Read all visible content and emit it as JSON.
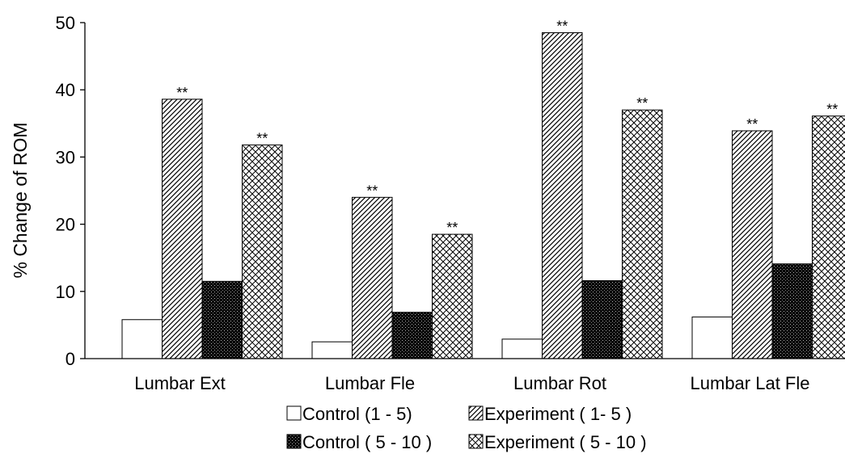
{
  "chart_data": {
    "type": "bar",
    "ylabel": "% Change of ROM",
    "xlabel": "",
    "ylim": [
      0,
      50
    ],
    "yticks": [
      "0",
      "10",
      "20",
      "30",
      "40",
      "50"
    ],
    "categories": [
      "Lumbar Ext",
      "Lumbar Fle",
      "Lumbar Rot",
      "Lumbar Lat Fle"
    ],
    "series": [
      {
        "name": "Control (1 - 5)",
        "pattern": "white",
        "values": [
          5.8,
          2.5,
          2.9,
          6.2
        ],
        "sig": [
          "",
          "",
          "",
          ""
        ]
      },
      {
        "name": "Experiment ( 1- 5 )",
        "pattern": "diagonal",
        "values": [
          38.6,
          24.0,
          48.5,
          33.9
        ],
        "sig": [
          "**",
          "**",
          "**",
          "**"
        ]
      },
      {
        "name": "Control ( 5 - 10 )",
        "pattern": "dark-dots",
        "values": [
          11.5,
          6.9,
          11.6,
          14.1
        ],
        "sig": [
          "",
          "",
          "",
          ""
        ]
      },
      {
        "name": "Experiment ( 5 - 10 )",
        "pattern": "crosshatch",
        "values": [
          31.8,
          18.5,
          37.0,
          36.1
        ],
        "sig": [
          "**",
          "**",
          "**",
          "**"
        ]
      }
    ],
    "grid": false,
    "legend": "bottom",
    "colors": {
      "axis": "#000000",
      "dark_fill": "#000000",
      "light_fill": "#ffffff"
    }
  }
}
